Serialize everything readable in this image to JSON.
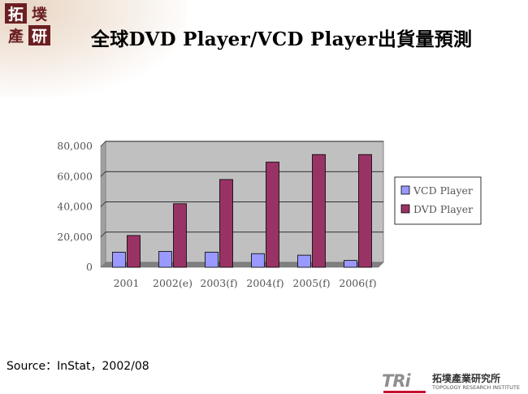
{
  "slide": {
    "logo_chars": [
      "拓",
      "墣",
      "產",
      "研"
    ],
    "title": "全球DVD Player/VCD Player出貨量預測",
    "source": "Source：InStat，2002/08",
    "footer": {
      "tri_text": "TRi",
      "org_chinese": "拓墣產業研究所",
      "org_english": "TOPOLOGY RESEARCH INSTITUTE"
    }
  },
  "chart_data": {
    "type": "bar",
    "categories": [
      "2001",
      "2002(e)",
      "2003(f)",
      "2004(f)",
      "2005(f)",
      "2006(f)"
    ],
    "series": [
      {
        "name": "VCD Player",
        "values": [
          10000,
          10500,
          10000,
          9000,
          8000,
          4500
        ],
        "color": "#9999ff"
      },
      {
        "name": "DVD Player",
        "values": [
          21000,
          42000,
          58000,
          69500,
          74500,
          74500
        ],
        "color": "#993366"
      }
    ],
    "y_ticks": [
      "0",
      "20,000",
      "40,000",
      "60,000",
      "80,000"
    ],
    "ylim": [
      0,
      80000
    ],
    "plot_background": "#c0c0c0",
    "grid": true,
    "legend_position": "right"
  }
}
